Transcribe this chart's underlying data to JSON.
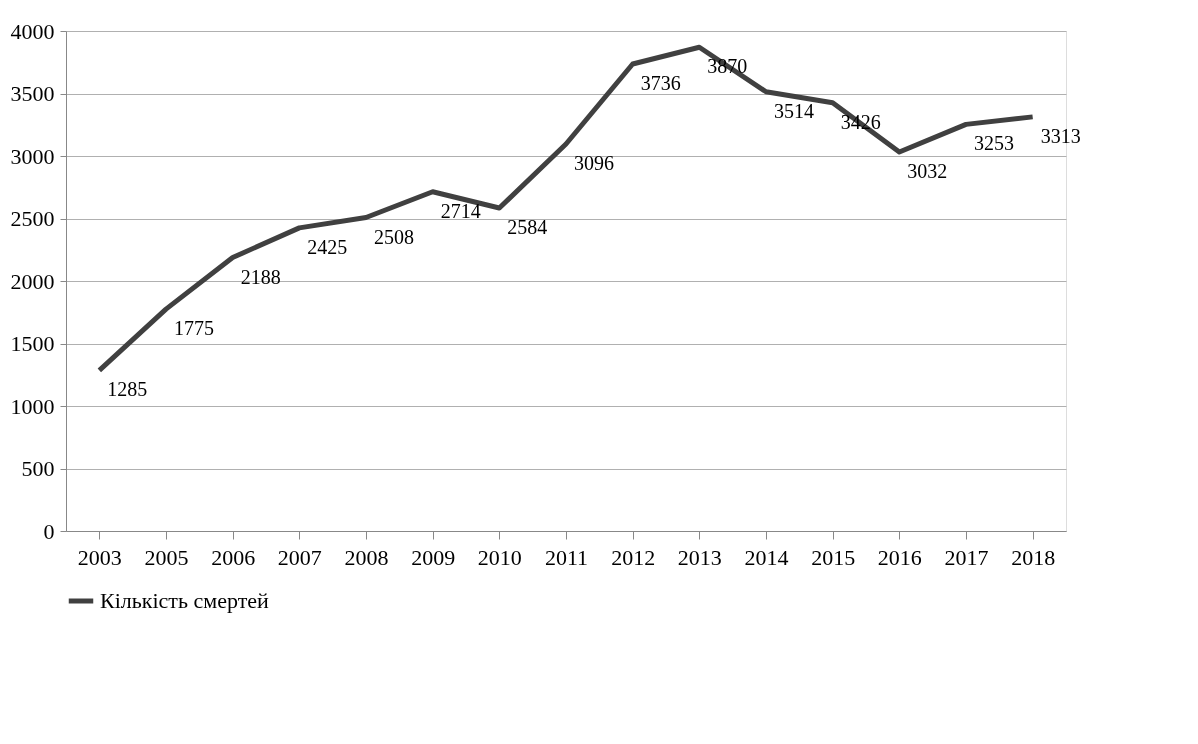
{
  "chart_data": {
    "type": "line",
    "categories": [
      "2003",
      "2005",
      "2006",
      "2007",
      "2008",
      "2009",
      "2010",
      "2011",
      "2012",
      "2013",
      "2014",
      "2015",
      "2016",
      "2017",
      "2018"
    ],
    "series": [
      {
        "name": "Кількість смертей",
        "color": "#404040",
        "values": [
          1285,
          1775,
          2188,
          2425,
          2508,
          2714,
          2584,
          3096,
          3736,
          3870,
          3514,
          3426,
          3032,
          3253,
          3313
        ]
      }
    ],
    "ylim": [
      0,
      4000
    ],
    "yticks": [
      0,
      500,
      1000,
      1500,
      2000,
      2500,
      3000,
      3500,
      4000
    ],
    "grid": "y",
    "legend": "bottom",
    "data_labels": true,
    "marker": "none",
    "line_style": "solid"
  }
}
